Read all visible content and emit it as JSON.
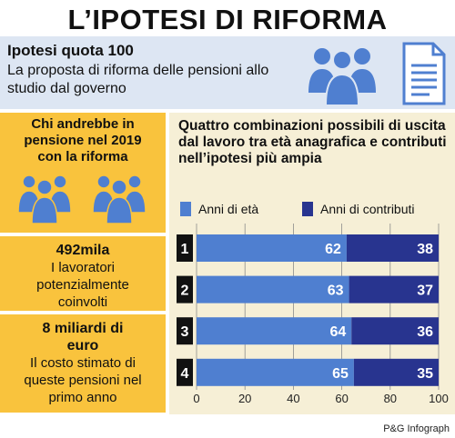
{
  "header": {
    "title": "L’IPOTESI DI RIFORMA"
  },
  "top_panel": {
    "subtitle": "Ipotesi quota 100",
    "description": "La proposta di riforma delle pensioni allo studio dal governo"
  },
  "left_cards": {
    "card1_heading": "Chi andrebbe in pensione nel 2019 con la riforma",
    "card2_value": "492mila",
    "card2_text": "I lavoratori potenzialmente coinvolti",
    "card3_value": "8 miliardi di euro",
    "card3_text": "Il costo stimato di queste pensioni nel primo anno"
  },
  "colors": {
    "age": "#4f7fd0",
    "contributions": "#28348f",
    "yellow": "#f9c33d",
    "light_blue": "#dde6f3",
    "cream": "#f6efd6",
    "icon_blue": "#4f7fd0"
  },
  "icons": [
    "people-group-icon",
    "document-icon"
  ],
  "chart_data": {
    "type": "bar",
    "orientation": "horizontal",
    "stacked": true,
    "title": "Quattro combinazioni possibili di uscita dal lavoro tra età anagrafica e contributi nell’ipotesi più ampia",
    "categories": [
      "1",
      "2",
      "3",
      "4"
    ],
    "series": [
      {
        "name": "Anni di età",
        "values": [
          62,
          63,
          64,
          65
        ]
      },
      {
        "name": "Anni di contributi",
        "values": [
          38,
          37,
          36,
          35
        ]
      }
    ],
    "xlim": [
      0,
      100
    ],
    "xticks": [
      0,
      20,
      40,
      60,
      80,
      100
    ],
    "grid": true,
    "legend": "top"
  },
  "footer": {
    "credit": "P&G Infograph"
  }
}
